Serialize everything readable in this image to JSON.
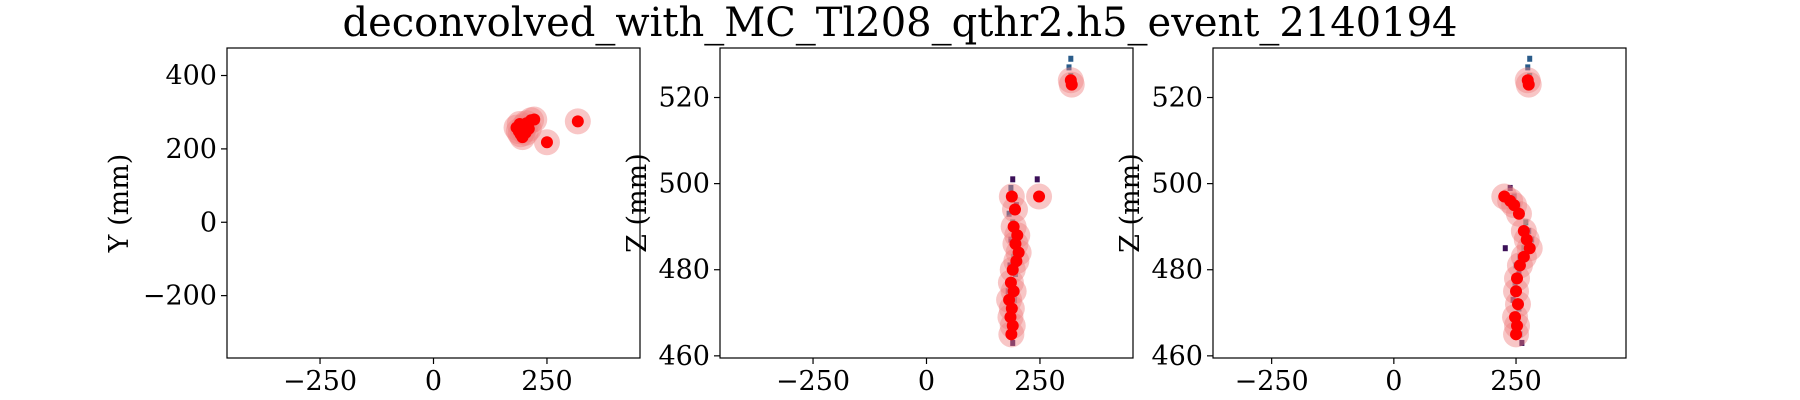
{
  "figure": {
    "title": "deconvolved_with_MC_Tl208_qthr2.h5_event_2140194"
  },
  "colors": {
    "hit": "#ff0000",
    "hit_halo": "#f08080",
    "hist_low": "#3b1058",
    "hist_mid": "#2a5c8a",
    "hist_high": "#21918c"
  },
  "chart_data": [
    {
      "type": "scatter",
      "panel": "XY",
      "title": "",
      "xlabel": "",
      "ylabel": "Y (mm)",
      "xlim": [
        -455,
        455
      ],
      "ylim": [
        -370,
        475
      ],
      "xticks": [
        -250,
        0,
        250
      ],
      "xtick_labels": [
        "−250",
        "0",
        "250"
      ],
      "yticks": [
        -200,
        0,
        200,
        400
      ],
      "ytick_labels": [
        "−200",
        "0",
        "200",
        "400"
      ],
      "grid": false,
      "series": [
        {
          "points": [
            [
              183,
              258
            ],
            [
              188,
              248
            ],
            [
              192,
              240
            ],
            [
              196,
              232
            ],
            [
              200,
              262
            ],
            [
              205,
              270
            ],
            [
              210,
              255
            ],
            [
              215,
              278
            ],
            [
              222,
              280
            ],
            [
              190,
              268
            ],
            [
              198,
              250
            ],
            [
              203,
              244
            ],
            [
              250,
              218
            ],
            [
              318,
              275
            ]
          ]
        }
      ]
    },
    {
      "type": "scatter",
      "panel": "XZ",
      "title": "",
      "xlabel": "",
      "ylabel": "Z (mm)",
      "xlim": [
        -455,
        455
      ],
      "ylim": [
        459.5,
        531.5
      ],
      "xticks": [
        -250,
        0,
        250
      ],
      "xtick_labels": [
        "−250",
        "0",
        "250"
      ],
      "yticks": [
        460,
        480,
        500,
        520
      ],
      "ytick_labels": [
        "460",
        "480",
        "500",
        "520"
      ],
      "grid": false,
      "histogram_cells": [
        [
          190,
          501,
          1
        ],
        [
          186,
          499,
          2
        ],
        [
          194,
          497,
          2
        ],
        [
          198,
          495,
          1
        ],
        [
          182,
          493,
          2
        ],
        [
          190,
          491,
          3
        ],
        [
          196,
          489,
          2
        ],
        [
          186,
          487,
          1
        ],
        [
          200,
          485,
          2
        ],
        [
          192,
          483,
          3
        ],
        [
          184,
          481,
          1
        ],
        [
          196,
          479,
          2
        ],
        [
          188,
          477,
          2
        ],
        [
          180,
          475,
          1
        ],
        [
          194,
          473,
          2
        ],
        [
          186,
          471,
          3
        ],
        [
          182,
          469,
          2
        ],
        [
          190,
          467,
          1
        ],
        [
          186,
          465,
          2
        ],
        [
          190,
          463,
          1
        ],
        [
          318,
          529,
          2
        ],
        [
          314,
          527,
          2
        ],
        [
          318,
          525,
          3
        ],
        [
          314,
          523,
          1
        ],
        [
          244,
          501,
          1
        ],
        [
          248,
          497,
          1
        ]
      ],
      "series": [
        {
          "points": [
            [
              188,
              497
            ],
            [
              195,
              494
            ],
            [
              192,
              490
            ],
            [
              200,
              488
            ],
            [
              196,
              486
            ],
            [
              203,
              484
            ],
            [
              198,
              482
            ],
            [
              190,
              480
            ],
            [
              186,
              477
            ],
            [
              192,
              475
            ],
            [
              182,
              473
            ],
            [
              188,
              471
            ],
            [
              185,
              469
            ],
            [
              190,
              467
            ],
            [
              187,
              465
            ],
            [
              248,
              497
            ],
            [
              318,
              524
            ],
            [
              320,
              523
            ]
          ]
        }
      ]
    },
    {
      "type": "scatter",
      "panel": "YZ",
      "title": "",
      "xlabel": "",
      "ylabel": "Z (mm)",
      "xlim": [
        -370,
        475
      ],
      "ylim": [
        459.5,
        531.5
      ],
      "xticks": [
        -250,
        0,
        250
      ],
      "xtick_labels": [
        "−250",
        "0",
        "250"
      ],
      "yticks": [
        460,
        480,
        500,
        520
      ],
      "ytick_labels": [
        "460",
        "480",
        "500",
        "520"
      ],
      "grid": false,
      "histogram_cells": [
        [
          238,
          499,
          1
        ],
        [
          246,
          497,
          2
        ],
        [
          254,
          495,
          2
        ],
        [
          262,
          493,
          3
        ],
        [
          270,
          491,
          3
        ],
        [
          276,
          489,
          2
        ],
        [
          282,
          487,
          2
        ],
        [
          266,
          485,
          3
        ],
        [
          258,
          483,
          2
        ],
        [
          250,
          481,
          2
        ],
        [
          256,
          479,
          1
        ],
        [
          248,
          477,
          2
        ],
        [
          252,
          475,
          2
        ],
        [
          244,
          473,
          1
        ],
        [
          256,
          471,
          2
        ],
        [
          250,
          469,
          3
        ],
        [
          254,
          467,
          1
        ],
        [
          258,
          465,
          2
        ],
        [
          262,
          463,
          1
        ],
        [
          278,
          529,
          2
        ],
        [
          274,
          527,
          2
        ],
        [
          278,
          525,
          3
        ],
        [
          274,
          523,
          1
        ],
        [
          228,
          485,
          1
        ]
      ],
      "series": [
        {
          "points": [
            [
              226,
              497
            ],
            [
              238,
              496
            ],
            [
              246,
              495
            ],
            [
              256,
              493
            ],
            [
              266,
              489
            ],
            [
              272,
              487
            ],
            [
              278,
              485
            ],
            [
              266,
              483
            ],
            [
              258,
              481
            ],
            [
              252,
              478
            ],
            [
              250,
              475
            ],
            [
              254,
              472
            ],
            [
              248,
              469
            ],
            [
              252,
              467
            ],
            [
              250,
              465
            ],
            [
              274,
              524
            ],
            [
              276,
              523
            ]
          ]
        }
      ]
    }
  ]
}
